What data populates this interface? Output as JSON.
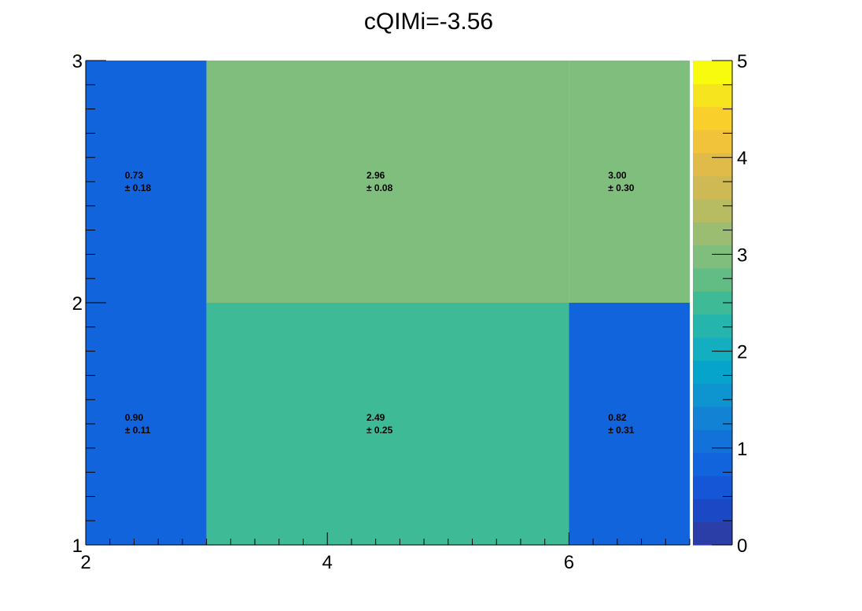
{
  "chart_data": {
    "type": "heatmap",
    "title": "cQIMi=-3.56",
    "xlabel": "",
    "ylabel": "",
    "x_edges": [
      2,
      3,
      6,
      7
    ],
    "y_edges": [
      1,
      2,
      3
    ],
    "xlim": [
      2,
      7
    ],
    "ylim": [
      1,
      3
    ],
    "zlim": [
      0,
      5
    ],
    "x_ticks": [
      2,
      4,
      6
    ],
    "y_ticks": [
      1,
      2,
      3
    ],
    "z_ticks": [
      0,
      1,
      2,
      3,
      4,
      5
    ],
    "cells": [
      {
        "x": [
          2,
          3
        ],
        "y": [
          1,
          2
        ],
        "value": 0.9,
        "error": 0.11,
        "label": "0.90",
        "err_label": "± 0.11"
      },
      {
        "x": [
          3,
          6
        ],
        "y": [
          1,
          2
        ],
        "value": 2.49,
        "error": 0.25,
        "label": "2.49",
        "err_label": "± 0.25"
      },
      {
        "x": [
          6,
          7
        ],
        "y": [
          1,
          2
        ],
        "value": 0.82,
        "error": 0.31,
        "label": "0.82",
        "err_label": "± 0.31"
      },
      {
        "x": [
          2,
          3
        ],
        "y": [
          2,
          3
        ],
        "value": 0.73,
        "error": 0.18,
        "label": "0.73",
        "err_label": "± 0.18"
      },
      {
        "x": [
          3,
          6
        ],
        "y": [
          2,
          3
        ],
        "value": 2.96,
        "error": 0.08,
        "label": "2.96",
        "err_label": "± 0.08"
      },
      {
        "x": [
          6,
          7
        ],
        "y": [
          2,
          3
        ],
        "value": 3.0,
        "error": 0.3,
        "label": "3.00",
        "err_label": "± 0.30"
      }
    ],
    "palette": [
      "#2b3ea8",
      "#1b49c6",
      "#1456d6",
      "#1164dc",
      "#1272d9",
      "#1283d4",
      "#0e95d0",
      "#06a4ca",
      "#13aec0",
      "#25b5ad",
      "#3fba97",
      "#62bd84",
      "#7fbe7c",
      "#9bbd71",
      "#b7bc63",
      "#cfb955",
      "#e0bb49",
      "#f1c33a",
      "#f9cf2b",
      "#f6e51e",
      "#f9fb0e"
    ],
    "grid": false,
    "legend": "colorbar-right"
  }
}
